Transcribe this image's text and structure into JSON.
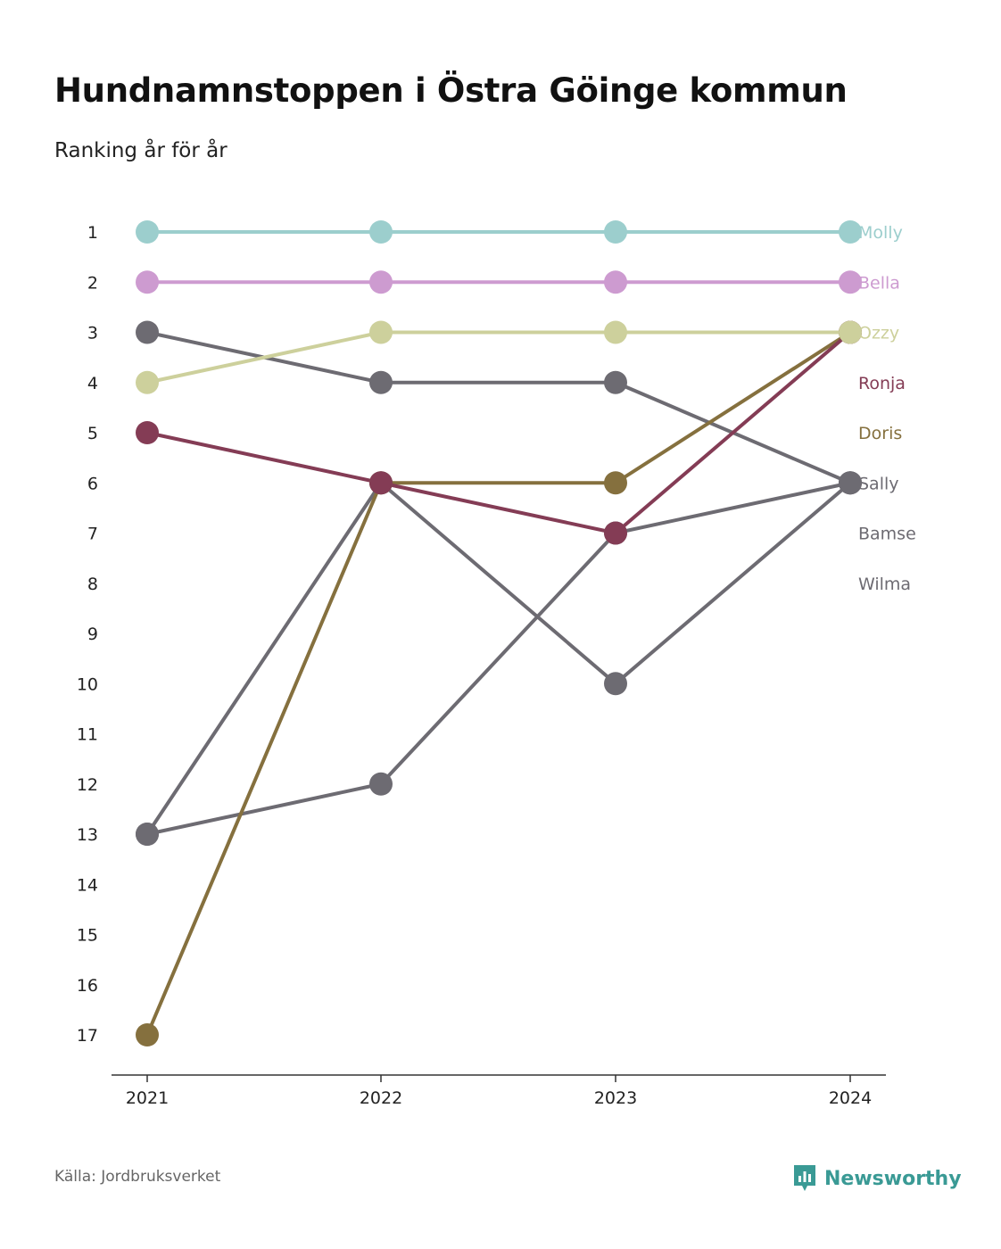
{
  "title": "Hundnamnstoppen i Östra Göinge kommun",
  "subtitle": "Ranking år för år",
  "source": "Källa: Jordbruksverket",
  "brand": {
    "name": "Newsworthy",
    "icon": "newsworthy-logo-icon",
    "color": "#3a9a95"
  },
  "chart_data": {
    "type": "line",
    "x": [
      "2021",
      "2022",
      "2023",
      "2024"
    ],
    "y_ticks": [
      "1",
      "2",
      "3",
      "4",
      "5",
      "6",
      "7",
      "8",
      "9",
      "10",
      "11",
      "12",
      "13",
      "14",
      "15",
      "16",
      "17"
    ],
    "ylim": [
      1,
      17
    ],
    "y_reversed": true,
    "grid": false,
    "legend": "right",
    "series": [
      {
        "name": "Wilma",
        "color": "#6d6b72",
        "values": [
          13,
          12,
          7,
          6
        ]
      },
      {
        "name": "Bamse",
        "color": "#6d6b72",
        "values": [
          13,
          6,
          10,
          6
        ]
      },
      {
        "name": "Sally",
        "color": "#6d6b72",
        "values": [
          3,
          4,
          4,
          6
        ]
      },
      {
        "name": "Doris",
        "color": "#85703e",
        "values": [
          17,
          6,
          6,
          3
        ]
      },
      {
        "name": "Ronja",
        "color": "#843c55",
        "values": [
          5,
          6,
          7,
          3
        ]
      },
      {
        "name": "Ozzy",
        "color": "#cdd09c",
        "values": [
          4,
          3,
          3,
          3
        ]
      },
      {
        "name": "Bella",
        "color": "#cd9bd0",
        "values": [
          2,
          2,
          2,
          2
        ]
      },
      {
        "name": "Molly",
        "color": "#9ccecd",
        "values": [
          1,
          1,
          1,
          1
        ]
      }
    ],
    "label_order": [
      "Molly",
      "Bella",
      "Ozzy",
      "Ronja",
      "Doris",
      "Sally",
      "Bamse",
      "Wilma"
    ]
  }
}
